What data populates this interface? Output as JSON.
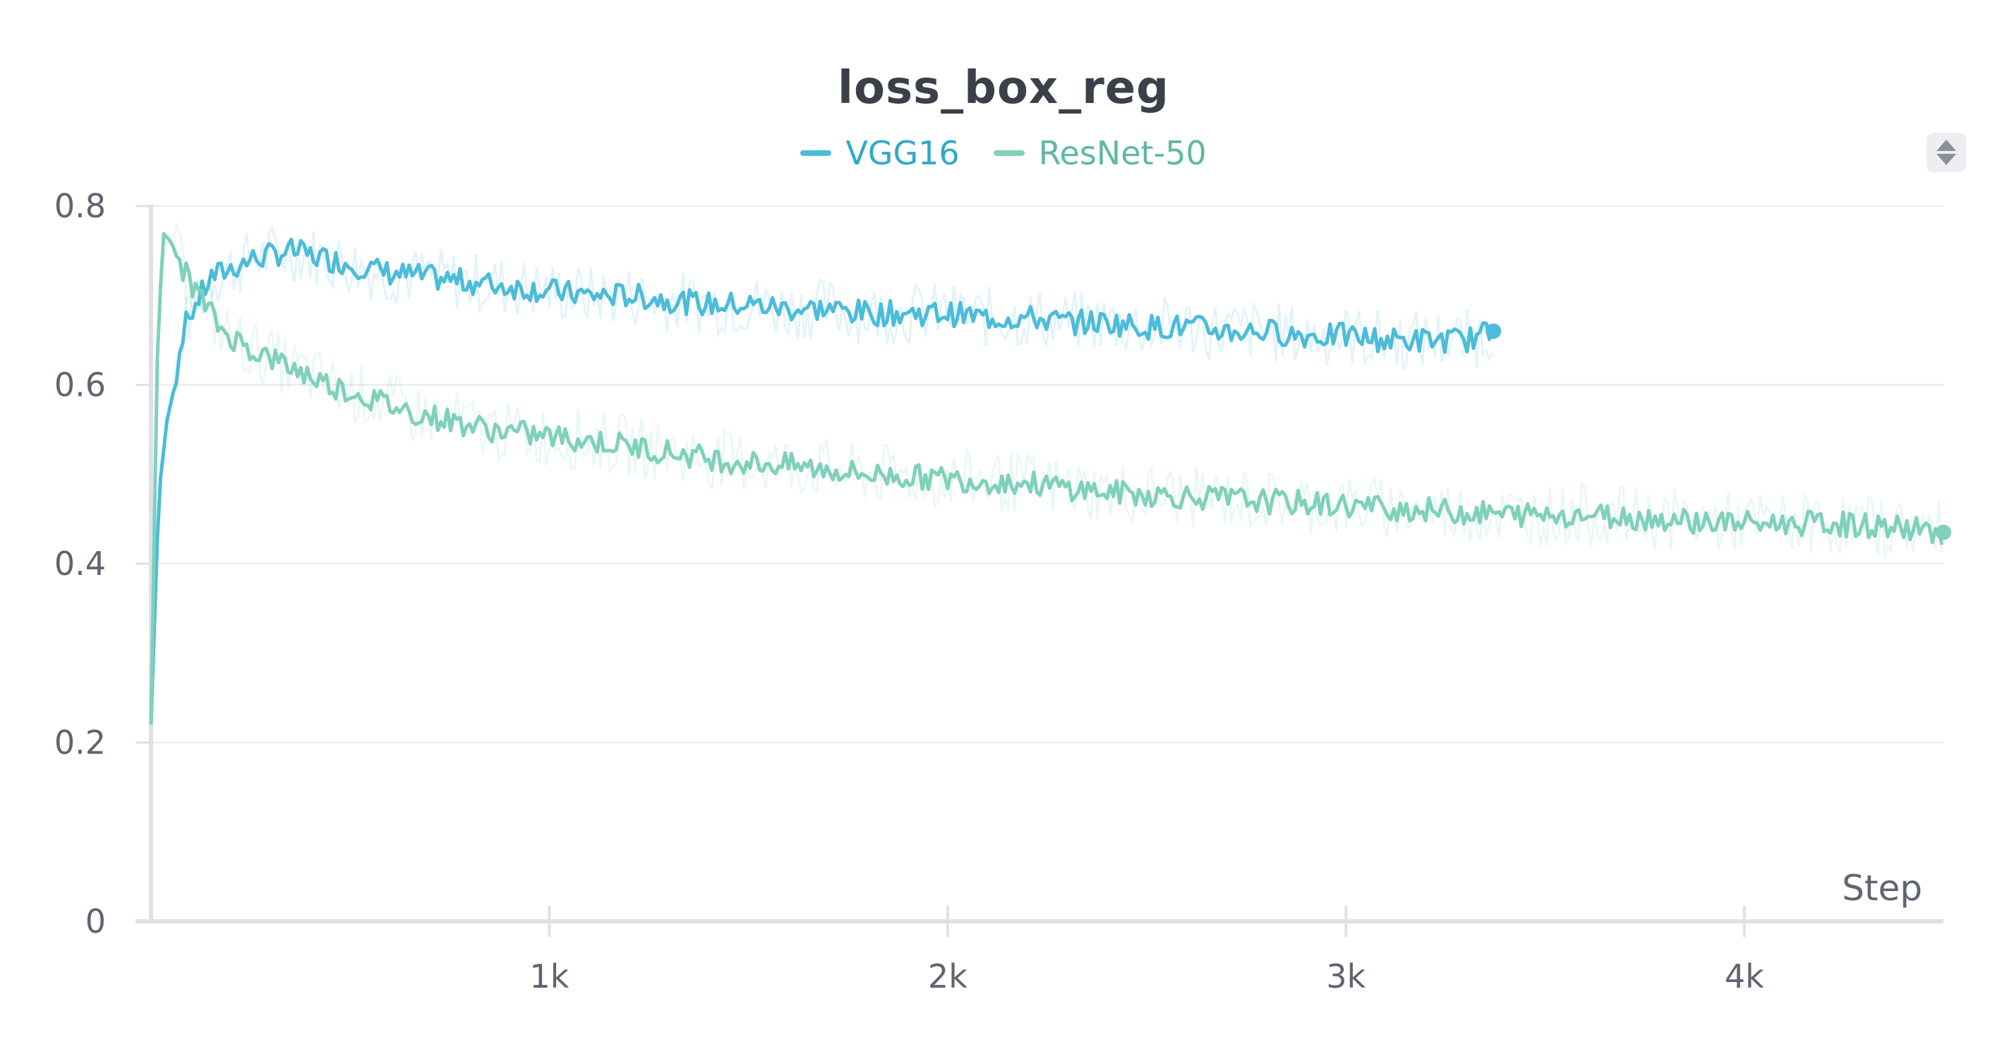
{
  "chart_data": {
    "type": "line",
    "title": "loss_box_reg",
    "xlabel": "Step",
    "ylabel": "",
    "xlim": [
      0,
      4500
    ],
    "ylim": [
      0,
      0.8
    ],
    "x_ticks": [
      1000,
      2000,
      3000,
      4000
    ],
    "x_tick_labels": [
      "1k",
      "2k",
      "3k",
      "4k"
    ],
    "y_ticks": [
      0,
      0.2,
      0.4,
      0.6,
      0.8
    ],
    "y_tick_labels": [
      "0",
      "0.2",
      "0.4",
      "0.6",
      "0.8"
    ],
    "grid": true,
    "legend_position": "top-center",
    "series": [
      {
        "name": "VGG16",
        "color": "#4bbcd9",
        "x": [
          0,
          20,
          40,
          60,
          80,
          100,
          150,
          200,
          250,
          300,
          350,
          400,
          450,
          500,
          550,
          600,
          700,
          800,
          900,
          1000,
          1100,
          1200,
          1300,
          1400,
          1500,
          1600,
          1700,
          1800,
          1900,
          2000,
          2100,
          2200,
          2300,
          2400,
          2500,
          2600,
          2700,
          2800,
          2900,
          3000,
          3100,
          3200,
          3300,
          3370
        ],
        "y": [
          0.22,
          0.48,
          0.56,
          0.6,
          0.66,
          0.68,
          0.72,
          0.73,
          0.74,
          0.745,
          0.75,
          0.745,
          0.74,
          0.735,
          0.73,
          0.725,
          0.72,
          0.715,
          0.71,
          0.705,
          0.7,
          0.7,
          0.695,
          0.69,
          0.69,
          0.685,
          0.685,
          0.68,
          0.68,
          0.68,
          0.675,
          0.675,
          0.67,
          0.67,
          0.665,
          0.665,
          0.66,
          0.66,
          0.655,
          0.655,
          0.65,
          0.65,
          0.65,
          0.66
        ]
      },
      {
        "name": "ResNet-50",
        "color": "#7fd1b9",
        "x": [
          0,
          15,
          30,
          50,
          80,
          120,
          180,
          250,
          350,
          450,
          550,
          650,
          750,
          850,
          950,
          1050,
          1150,
          1300,
          1450,
          1600,
          1800,
          2000,
          2200,
          2400,
          2600,
          2800,
          3000,
          3200,
          3400,
          3600,
          3800,
          4000,
          4200,
          4400,
          4500
        ],
        "y": [
          0.22,
          0.62,
          0.77,
          0.76,
          0.73,
          0.7,
          0.66,
          0.64,
          0.62,
          0.6,
          0.585,
          0.57,
          0.56,
          0.55,
          0.545,
          0.54,
          0.535,
          0.525,
          0.515,
          0.51,
          0.5,
          0.495,
          0.49,
          0.48,
          0.475,
          0.47,
          0.465,
          0.46,
          0.455,
          0.455,
          0.45,
          0.445,
          0.445,
          0.44,
          0.435
        ]
      }
    ]
  }
}
